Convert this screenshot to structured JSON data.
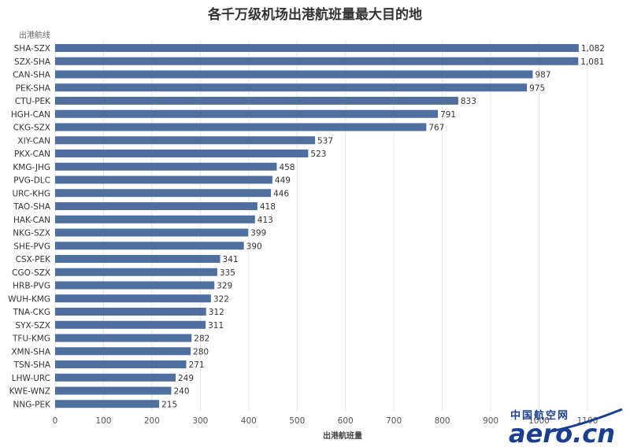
{
  "chart_data": {
    "type": "bar",
    "orientation": "horizontal",
    "title": "各千万级机场出港航班量最大目的地",
    "ylabel": "出港航线",
    "xlabel": "出港航班量",
    "xlim": [
      0,
      1100
    ],
    "x_ticks": [
      "0",
      "100",
      "200",
      "300",
      "400",
      "500",
      "600",
      "700",
      "800",
      "900",
      "1000",
      "1100"
    ],
    "grid": true,
    "bar_color": "#4f6f9f",
    "categories": [
      "SHA-SZX",
      "SZX-SHA",
      "CAN-SHA",
      "PEK-SHA",
      "CTU-PEK",
      "HGH-CAN",
      "CKG-SZX",
      "XIY-CAN",
      "PKX-CAN",
      "KMG-JHG",
      "PVG-DLC",
      "URC-KHG",
      "TAO-SHA",
      "HAK-CAN",
      "NKG-SZX",
      "SHE-PVG",
      "CSX-PEK",
      "CGO-SZX",
      "HRB-PVG",
      "WUH-KMG",
      "TNA-CKG",
      "SYX-SZX",
      "TFU-KMG",
      "XMN-SHA",
      "TSN-SHA",
      "LHW-URC",
      "KWE-WNZ",
      "NNG-PEK"
    ],
    "values": [
      1082,
      1081,
      987,
      975,
      833,
      791,
      767,
      537,
      523,
      458,
      449,
      446,
      418,
      413,
      399,
      390,
      341,
      335,
      329,
      322,
      312,
      311,
      282,
      280,
      271,
      249,
      240,
      215
    ],
    "value_labels": [
      "1,082",
      "1,081",
      "987",
      "975",
      "833",
      "791",
      "767",
      "537",
      "523",
      "458",
      "449",
      "446",
      "418",
      "413",
      "399",
      "390",
      "341",
      "335",
      "329",
      "322",
      "312",
      "311",
      "282",
      "280",
      "271",
      "249",
      "240",
      "215"
    ]
  },
  "watermark": {
    "cn": "中国航空网",
    "en": "aero.cn",
    "color": "#1a3f8f"
  }
}
